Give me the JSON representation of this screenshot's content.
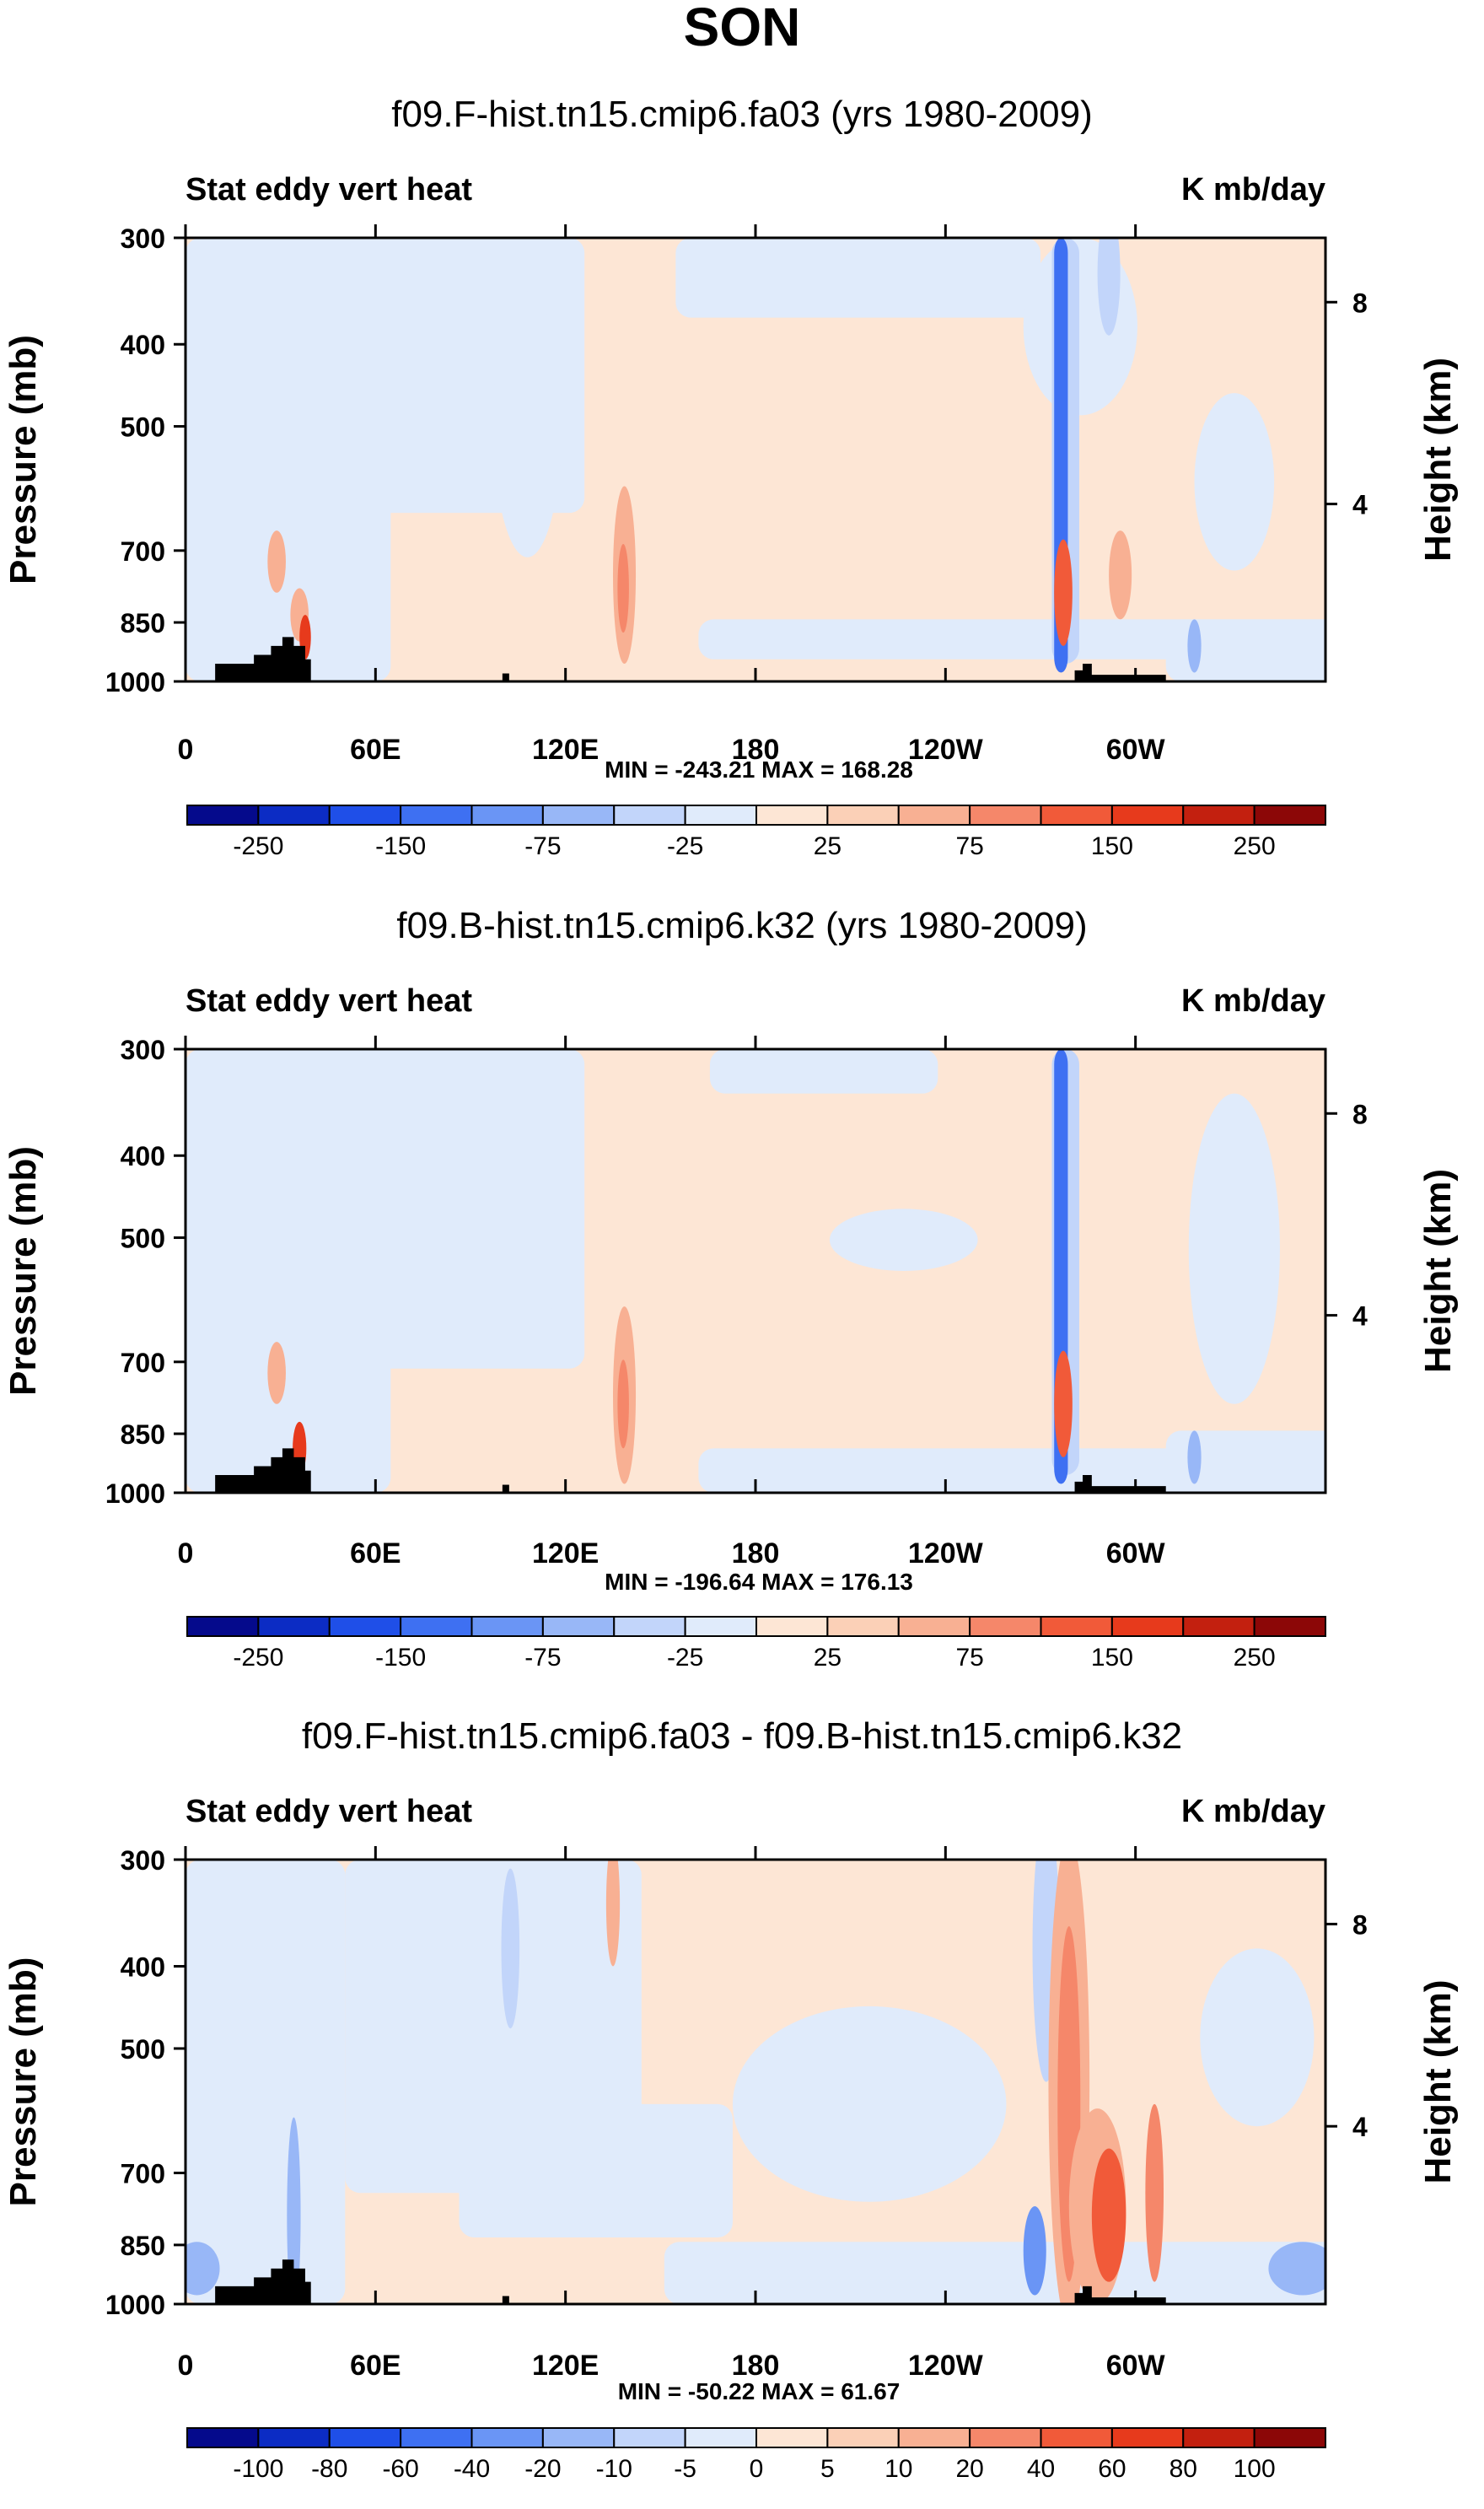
{
  "figure": {
    "title": "SON"
  },
  "colors": {
    "neg": [
      "#050a8c",
      "#0c2cc4",
      "#1f4fe8",
      "#3e70f2",
      "#6a95f5",
      "#98b7f7",
      "#c2d5fa",
      "#e0ebfb"
    ],
    "pos": [
      "#fde6d5",
      "#fbd0b7",
      "#f8b093",
      "#f5876a",
      "#f15a39",
      "#e73a1c",
      "#c3200f",
      "#8c0707"
    ],
    "land": "#000000"
  },
  "chart_data": [
    {
      "type": "contour",
      "title": "f09.F-hist.tn15.cmip6.fa03 (yrs 1980-2009)",
      "left_label": "Stat eddy vert heat",
      "right_label": "K mb/day",
      "ylabel": "Pressure (mb)",
      "ylabel_right": "Height (km)",
      "x_ticks": [
        "0",
        "60E",
        "120E",
        "180",
        "120W",
        "60W"
      ],
      "y_ticks": [
        "300",
        "400",
        "500",
        "700",
        "850",
        "1000"
      ],
      "y_right_ticks": [
        "8",
        "4"
      ],
      "min_max": "MIN = -243.21   MAX = 168.28",
      "colorbar_labels": [
        "-250",
        "-150",
        "-75",
        "-25",
        "25",
        "75",
        "150",
        "250"
      ]
    },
    {
      "type": "contour",
      "title": "f09.B-hist.tn15.cmip6.k32 (yrs 1980-2009)",
      "left_label": "Stat eddy vert heat",
      "right_label": "K mb/day",
      "ylabel": "Pressure (mb)",
      "ylabel_right": "Height (km)",
      "x_ticks": [
        "0",
        "60E",
        "120E",
        "180",
        "120W",
        "60W"
      ],
      "y_ticks": [
        "300",
        "400",
        "500",
        "700",
        "850",
        "1000"
      ],
      "y_right_ticks": [
        "8",
        "4"
      ],
      "min_max": "MIN = -196.64   MAX = 176.13",
      "colorbar_labels": [
        "-250",
        "-150",
        "-75",
        "-25",
        "25",
        "75",
        "150",
        "250"
      ]
    },
    {
      "type": "contour",
      "title": "f09.F-hist.tn15.cmip6.fa03 - f09.B-hist.tn15.cmip6.k32",
      "left_label": "Stat eddy vert heat",
      "right_label": "K mb/day",
      "ylabel": "Pressure (mb)",
      "ylabel_right": "Height (km)",
      "x_ticks": [
        "0",
        "60E",
        "120E",
        "180",
        "120W",
        "60W"
      ],
      "y_ticks": [
        "300",
        "400",
        "500",
        "700",
        "850",
        "1000"
      ],
      "y_right_ticks": [
        "8",
        "4"
      ],
      "min_max": "MIN = -50.22   MAX = 61.67",
      "colorbar_labels": [
        "-100",
        "-80",
        "-60",
        "-40",
        "-20",
        "-10",
        "-5",
        "0",
        "5",
        "10",
        "20",
        "40",
        "60",
        "80",
        "100"
      ]
    }
  ]
}
